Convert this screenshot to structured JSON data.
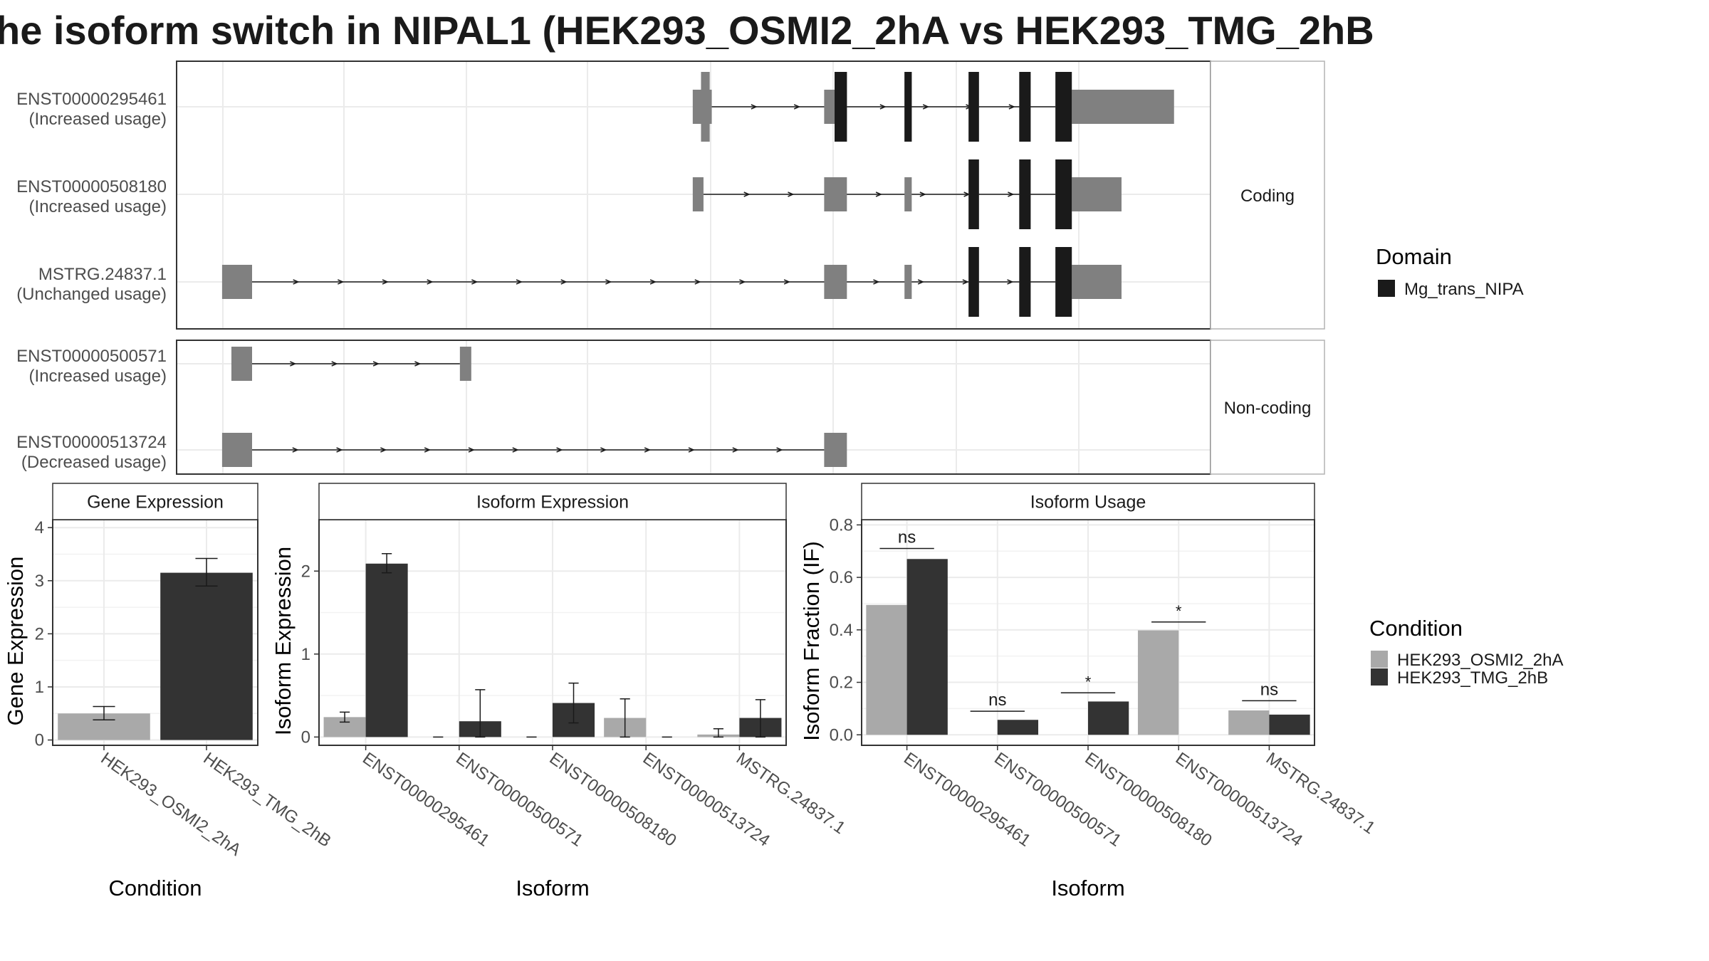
{
  "title": "he isoform switch in NIPAL1 (HEK293_OSMI2_2hA vs HEK293_TMG_2hB",
  "colors": {
    "cond_a": "#a9a9a9",
    "cond_b": "#333333",
    "exon": "#808080",
    "domain": "#1a1a1a",
    "grid": "#ebebeb",
    "panel_border": "#333333",
    "strip_border": "#b3b3b3"
  },
  "transcripts": {
    "groups": [
      {
        "label": "Coding",
        "tracks": [
          {
            "id": "ENST00000295461",
            "usage": "(Increased usage)",
            "utr": [
              [
                0.4992,
                0.5176
              ],
              [
                0.6263,
                0.6483
              ],
              [
                0.8658,
                0.9647
              ]
            ],
            "cds": [
              [
                0.5072,
                0.5156
              ],
              [
                0.6364,
                0.6483
              ],
              [
                0.704,
                0.711
              ],
              [
                0.766,
                0.776
              ],
              [
                0.815,
                0.826
              ],
              [
                0.85,
                0.8658
              ]
            ],
            "domain": [
              [
                0.6364,
                0.6483
              ],
              [
                0.704,
                0.711
              ],
              [
                0.766,
                0.776
              ],
              [
                0.815,
                0.826
              ],
              [
                0.85,
                0.8658
              ]
            ],
            "intron": [
              0.5176,
              0.85
            ]
          },
          {
            "id": "ENST00000508180",
            "usage": "(Increased usage)",
            "utr": [
              [
                0.4992,
                0.5096
              ],
              [
                0.6263,
                0.6483
              ],
              [
                0.704,
                0.711
              ],
              [
                0.8658,
                0.9139
              ]
            ],
            "cds": [
              [
                0.766,
                0.776
              ],
              [
                0.815,
                0.826
              ],
              [
                0.85,
                0.8658
              ]
            ],
            "domain": [
              [
                0.766,
                0.776
              ],
              [
                0.815,
                0.826
              ],
              [
                0.85,
                0.8658
              ]
            ],
            "intron": [
              0.5096,
              0.85
            ]
          },
          {
            "id": "MSTRG.24837.1",
            "usage": "(Unchanged usage)",
            "utr": [
              [
                0.044,
                0.073
              ],
              [
                0.6263,
                0.6483
              ],
              [
                0.704,
                0.711
              ],
              [
                0.8658,
                0.9139
              ]
            ],
            "cds": [
              [
                0.766,
                0.776
              ],
              [
                0.815,
                0.826
              ],
              [
                0.85,
                0.8658
              ]
            ],
            "domain": [
              [
                0.766,
                0.776
              ],
              [
                0.815,
                0.826
              ],
              [
                0.85,
                0.8658
              ]
            ],
            "intron": [
              0.073,
              0.85
            ]
          }
        ]
      },
      {
        "label": "Non-coding",
        "tracks": [
          {
            "id": "ENST00000500571",
            "usage": "(Increased usage)",
            "utr": [
              [
                0.053,
                0.073
              ],
              [
                0.274,
                0.285
              ]
            ],
            "cds": [],
            "domain": [],
            "intron": [
              0.073,
              0.274
            ]
          },
          {
            "id": "ENST00000513724",
            "usage": "(Decreased usage)",
            "utr": [
              [
                0.044,
                0.073
              ],
              [
                0.6263,
                0.6483
              ]
            ],
            "cds": [],
            "domain": [],
            "intron": [
              0.073,
              0.6263
            ]
          }
        ]
      }
    ]
  },
  "legend_domain": {
    "title": "Domain",
    "items": [
      {
        "label": "Mg_trans_NIPA",
        "color": "#1a1a1a"
      }
    ]
  },
  "legend_condition": {
    "title": "Condition",
    "items": [
      {
        "label": "HEK293_OSMI2_2hA",
        "color": "#a9a9a9"
      },
      {
        "label": "HEK293_TMG_2hB",
        "color": "#333333"
      }
    ]
  },
  "chart_data": [
    {
      "type": "bar",
      "title": "Gene Expression",
      "xlabel": "Condition",
      "ylabel": "Gene Expression",
      "categories": [
        "HEK293_OSMI2_2hA",
        "HEK293_TMG_2hB"
      ],
      "values": [
        0.5,
        3.15
      ],
      "errors": [
        [
          0.38,
          0.63
        ],
        [
          2.9,
          3.42
        ]
      ],
      "ylim": [
        -0.1,
        4.15
      ],
      "yticks": [
        0,
        1,
        2,
        3,
        4
      ]
    },
    {
      "type": "bar",
      "title": "Isoform Expression",
      "xlabel": "Isoform",
      "ylabel": "Isoform Expression",
      "categories": [
        "ENST00000295461",
        "ENST00000500571",
        "ENST00000508180",
        "ENST00000513724",
        "MSTRG.24837.1"
      ],
      "series": [
        {
          "name": "HEK293_OSMI2_2hA",
          "values": [
            0.24,
            0.0,
            0.0,
            0.23,
            0.03
          ],
          "errors": [
            [
              0.18,
              0.3
            ],
            [
              0.0,
              0.0
            ],
            [
              0.0,
              0.0
            ],
            [
              0.0,
              0.46
            ],
            [
              0.0,
              0.1
            ]
          ]
        },
        {
          "name": "HEK293_TMG_2hB",
          "values": [
            2.09,
            0.19,
            0.41,
            0.0,
            0.23
          ],
          "errors": [
            [
              1.98,
              2.21
            ],
            [
              0.0,
              0.57
            ],
            [
              0.17,
              0.65
            ],
            [
              0.0,
              0.0
            ],
            [
              0.0,
              0.45
            ]
          ]
        }
      ],
      "ylim": [
        -0.1,
        2.62
      ],
      "yticks": [
        0,
        1,
        2
      ]
    },
    {
      "type": "bar",
      "title": "Isoform Usage",
      "xlabel": "Isoform",
      "ylabel": "Isoform Fraction (IF)",
      "categories": [
        "ENST00000295461",
        "ENST00000500571",
        "ENST00000508180",
        "ENST00000513724",
        "MSTRG.24837.1"
      ],
      "series": [
        {
          "name": "HEK293_OSMI2_2hA",
          "values": [
            0.495,
            0.0,
            0.0,
            0.398,
            0.093
          ]
        },
        {
          "name": "HEK293_TMG_2hB",
          "values": [
            0.67,
            0.057,
            0.127,
            0.0,
            0.077
          ]
        }
      ],
      "significance": [
        "ns",
        "ns",
        "*",
        "*",
        "ns"
      ],
      "significance_y": [
        0.71,
        0.09,
        0.16,
        0.43,
        0.13
      ],
      "ylim": [
        -0.04,
        0.82
      ],
      "yticks": [
        0.0,
        0.2,
        0.4,
        0.6,
        0.8
      ],
      "ytick_labels": [
        "0.0",
        "0.2",
        "0.4",
        "0.6",
        "0.8"
      ]
    }
  ]
}
